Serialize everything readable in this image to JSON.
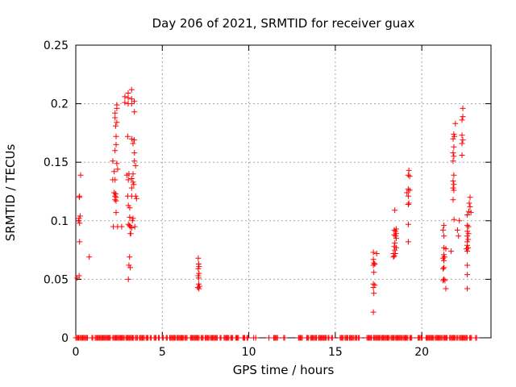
{
  "chart_data": {
    "type": "scatter",
    "title": "Day 206 of 2021, SRMTID for receiver guax",
    "xlabel": "GPS time / hours",
    "ylabel": "SRMTID / TECUs",
    "xlim": [
      0,
      24
    ],
    "ylim": [
      0,
      0.25
    ],
    "xticks": [
      0,
      5,
      10,
      15,
      20
    ],
    "xtick_labels": [
      "0",
      "5",
      "10",
      "15",
      "20"
    ],
    "yticks": [
      0,
      0.05,
      0.1,
      0.15,
      0.2,
      0.25
    ],
    "ytick_labels": [
      "0",
      "0.05",
      "0.1",
      "0.15",
      "0.2",
      "0.25"
    ],
    "grid": true,
    "legend": "none",
    "marker": "plus",
    "marker_color": "#ff0000",
    "grid_color": "#a6a6a6",
    "axis_color": "#000000",
    "series": [
      {
        "name": "SRMTID",
        "points": [
          [
            0.28,
            0.139
          ],
          [
            0.22,
            0.121
          ],
          [
            0.2,
            0.12
          ],
          [
            0.25,
            0.104
          ],
          [
            0.19,
            0.102
          ],
          [
            0.16,
            0.1
          ],
          [
            0.22,
            0.098
          ],
          [
            0.22,
            0.082
          ],
          [
            0.78,
            0.069
          ],
          [
            0.19,
            0.053
          ],
          [
            0.08,
            0.051
          ],
          [
            2.37,
            0.199
          ],
          [
            2.37,
            0.196
          ],
          [
            2.27,
            0.192
          ],
          [
            2.27,
            0.188
          ],
          [
            2.37,
            0.184
          ],
          [
            2.3,
            0.181
          ],
          [
            2.33,
            0.172
          ],
          [
            2.33,
            0.165
          ],
          [
            2.27,
            0.16
          ],
          [
            2.14,
            0.151
          ],
          [
            2.37,
            0.149
          ],
          [
            2.42,
            0.144
          ],
          [
            2.22,
            0.142
          ],
          [
            2.14,
            0.135
          ],
          [
            2.27,
            0.135
          ],
          [
            2.22,
            0.124
          ],
          [
            2.3,
            0.123
          ],
          [
            2.27,
            0.121
          ],
          [
            2.33,
            0.12
          ],
          [
            2.27,
            0.118
          ],
          [
            2.33,
            0.117
          ],
          [
            2.33,
            0.107
          ],
          [
            2.17,
            0.095
          ],
          [
            2.42,
            0.095
          ],
          [
            2.65,
            0.095
          ],
          [
            3.23,
            0.212
          ],
          [
            3.03,
            0.209
          ],
          [
            2.84,
            0.206
          ],
          [
            3.03,
            0.205
          ],
          [
            3.23,
            0.204
          ],
          [
            3.38,
            0.202
          ],
          [
            2.84,
            0.201
          ],
          [
            3.03,
            0.2
          ],
          [
            3.23,
            0.2
          ],
          [
            3.39,
            0.193
          ],
          [
            3.0,
            0.172
          ],
          [
            3.23,
            0.17
          ],
          [
            3.38,
            0.169
          ],
          [
            3.31,
            0.166
          ],
          [
            3.39,
            0.158
          ],
          [
            3.39,
            0.151
          ],
          [
            3.46,
            0.147
          ],
          [
            3.07,
            0.14
          ],
          [
            3.31,
            0.14
          ],
          [
            2.95,
            0.139
          ],
          [
            3.23,
            0.136
          ],
          [
            3.04,
            0.135
          ],
          [
            3.35,
            0.131
          ],
          [
            3.31,
            0.133
          ],
          [
            3.23,
            0.128
          ],
          [
            3.0,
            0.121
          ],
          [
            3.23,
            0.121
          ],
          [
            3.46,
            0.121
          ],
          [
            3.51,
            0.119
          ],
          [
            3.04,
            0.113
          ],
          [
            3.12,
            0.111
          ],
          [
            3.12,
            0.103
          ],
          [
            3.31,
            0.102
          ],
          [
            3.27,
            0.1
          ],
          [
            3.04,
            0.097
          ],
          [
            3.11,
            0.096
          ],
          [
            3.15,
            0.095
          ],
          [
            3.23,
            0.094
          ],
          [
            3.41,
            0.095
          ],
          [
            3.15,
            0.089
          ],
          [
            3.18,
            0.089
          ],
          [
            3.11,
            0.069
          ],
          [
            3.07,
            0.062
          ],
          [
            3.15,
            0.06
          ],
          [
            3.04,
            0.05
          ],
          [
            7.08,
            0.068
          ],
          [
            7.1,
            0.063
          ],
          [
            7.12,
            0.061
          ],
          [
            7.08,
            0.059
          ],
          [
            7.12,
            0.055
          ],
          [
            7.08,
            0.053
          ],
          [
            7.1,
            0.051
          ],
          [
            7.1,
            0.046
          ],
          [
            7.15,
            0.044
          ],
          [
            7.06,
            0.043
          ],
          [
            7.12,
            0.042
          ],
          [
            17.2,
            0.073
          ],
          [
            17.39,
            0.072
          ],
          [
            17.2,
            0.067
          ],
          [
            17.23,
            0.064
          ],
          [
            17.28,
            0.063
          ],
          [
            17.2,
            0.062
          ],
          [
            17.23,
            0.056
          ],
          [
            17.2,
            0.046
          ],
          [
            17.28,
            0.045
          ],
          [
            17.2,
            0.043
          ],
          [
            17.23,
            0.038
          ],
          [
            17.2,
            0.022
          ],
          [
            18.44,
            0.109
          ],
          [
            18.52,
            0.093
          ],
          [
            18.41,
            0.092
          ],
          [
            18.48,
            0.091
          ],
          [
            18.52,
            0.089
          ],
          [
            18.41,
            0.088
          ],
          [
            18.48,
            0.087
          ],
          [
            18.52,
            0.085
          ],
          [
            18.44,
            0.081
          ],
          [
            18.41,
            0.078
          ],
          [
            18.52,
            0.077
          ],
          [
            18.44,
            0.075
          ],
          [
            18.36,
            0.072
          ],
          [
            18.47,
            0.072
          ],
          [
            18.41,
            0.07
          ],
          [
            18.36,
            0.069
          ],
          [
            19.25,
            0.143
          ],
          [
            19.22,
            0.139
          ],
          [
            19.3,
            0.138
          ],
          [
            19.22,
            0.127
          ],
          [
            19.3,
            0.126
          ],
          [
            19.14,
            0.124
          ],
          [
            19.22,
            0.121
          ],
          [
            19.25,
            0.115
          ],
          [
            19.22,
            0.114
          ],
          [
            19.22,
            0.097
          ],
          [
            19.22,
            0.082
          ],
          [
            22.37,
            0.196
          ],
          [
            22.37,
            0.189
          ],
          [
            22.32,
            0.186
          ],
          [
            21.94,
            0.183
          ],
          [
            21.85,
            0.174
          ],
          [
            21.89,
            0.172
          ],
          [
            21.81,
            0.17
          ],
          [
            22.32,
            0.173
          ],
          [
            22.37,
            0.169
          ],
          [
            22.32,
            0.166
          ],
          [
            21.85,
            0.163
          ],
          [
            21.81,
            0.158
          ],
          [
            21.85,
            0.155
          ],
          [
            22.32,
            0.156
          ],
          [
            21.81,
            0.151
          ],
          [
            21.85,
            0.139
          ],
          [
            21.81,
            0.134
          ],
          [
            21.85,
            0.131
          ],
          [
            21.81,
            0.128
          ],
          [
            21.85,
            0.126
          ],
          [
            21.81,
            0.118
          ],
          [
            22.79,
            0.12
          ],
          [
            22.74,
            0.115
          ],
          [
            22.79,
            0.112
          ],
          [
            22.72,
            0.108
          ],
          [
            22.84,
            0.107
          ],
          [
            22.63,
            0.105
          ],
          [
            22.17,
            0.1
          ],
          [
            21.86,
            0.101
          ],
          [
            22.63,
            0.096
          ],
          [
            22.7,
            0.095
          ],
          [
            21.28,
            0.096
          ],
          [
            21.23,
            0.092
          ],
          [
            22.06,
            0.092
          ],
          [
            22.63,
            0.091
          ],
          [
            22.7,
            0.089
          ],
          [
            21.28,
            0.087
          ],
          [
            22.12,
            0.087
          ],
          [
            22.63,
            0.087
          ],
          [
            22.68,
            0.084
          ],
          [
            22.63,
            0.082
          ],
          [
            21.28,
            0.077
          ],
          [
            21.39,
            0.076
          ],
          [
            21.7,
            0.074
          ],
          [
            22.63,
            0.079
          ],
          [
            22.68,
            0.077
          ],
          [
            22.58,
            0.076
          ],
          [
            22.63,
            0.074
          ],
          [
            21.28,
            0.071
          ],
          [
            21.31,
            0.069
          ],
          [
            21.23,
            0.068
          ],
          [
            21.28,
            0.066
          ],
          [
            22.63,
            0.062
          ],
          [
            21.28,
            0.06
          ],
          [
            21.23,
            0.059
          ],
          [
            22.63,
            0.054
          ],
          [
            21.28,
            0.05
          ],
          [
            21.23,
            0.049
          ],
          [
            21.34,
            0.049
          ],
          [
            21.39,
            0.042
          ],
          [
            22.63,
            0.042
          ]
        ],
        "zero_value_runs_hours": [
          [
            0.0,
            0.2
          ],
          [
            0.23,
            0.47
          ],
          [
            0.51,
            0.7
          ],
          [
            0.93,
            1.02
          ],
          [
            1.12,
            2.05
          ],
          [
            2.14,
            2.83
          ],
          [
            2.9,
            3.37
          ],
          [
            3.45,
            3.6
          ],
          [
            3.68,
            3.99
          ],
          [
            4.07,
            4.22
          ],
          [
            4.3,
            4.38
          ],
          [
            4.53,
            4.66
          ],
          [
            4.77,
            4.84
          ],
          [
            5.0,
            5.08
          ],
          [
            5.23,
            5.31
          ],
          [
            5.43,
            5.77
          ],
          [
            5.85,
            6.24
          ],
          [
            6.32,
            6.47
          ],
          [
            6.63,
            7.17
          ],
          [
            7.25,
            7.4
          ],
          [
            7.48,
            7.72
          ],
          [
            7.79,
            8.18
          ],
          [
            8.34,
            8.44
          ],
          [
            8.57,
            8.88
          ],
          [
            8.96,
            9.11
          ],
          [
            9.24,
            9.42
          ],
          [
            9.66,
            9.78
          ],
          [
            9.89,
            9.97
          ],
          [
            10.28,
            10.32
          ],
          [
            10.4,
            10.43
          ],
          [
            11.16,
            11.2
          ],
          [
            11.44,
            11.68
          ],
          [
            12.02,
            12.11
          ],
          [
            12.87,
            13.1
          ],
          [
            13.34,
            13.49
          ],
          [
            13.57,
            13.76
          ],
          [
            13.8,
            13.96
          ],
          [
            14.03,
            14.5
          ],
          [
            14.58,
            14.68
          ],
          [
            14.78,
            14.86
          ],
          [
            15.28,
            15.46
          ],
          [
            15.56,
            15.74
          ],
          [
            15.82,
            16.08
          ],
          [
            16.13,
            16.24
          ],
          [
            16.33,
            16.39
          ],
          [
            16.83,
            17.14
          ],
          [
            17.22,
            17.61
          ],
          [
            17.68,
            18.15
          ],
          [
            18.22,
            18.41
          ],
          [
            18.46,
            18.85
          ],
          [
            18.92,
            19.23
          ],
          [
            19.31,
            19.47
          ],
          [
            19.78,
            19.9
          ],
          [
            19.96,
            20.06
          ],
          [
            20.24,
            20.71
          ],
          [
            20.78,
            21.17
          ],
          [
            21.25,
            21.51
          ],
          [
            21.61,
            21.95
          ],
          [
            22.03,
            22.11
          ],
          [
            22.18,
            22.65
          ],
          [
            22.76,
            22.88
          ],
          [
            23.11,
            23.19
          ]
        ]
      }
    ]
  }
}
